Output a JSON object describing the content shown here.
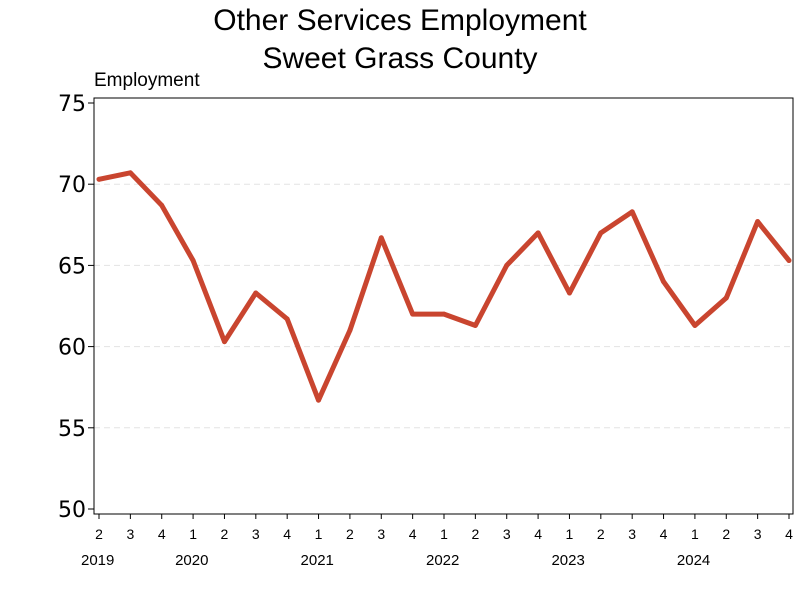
{
  "chart_data": {
    "type": "line",
    "title": [
      "Other Services Employment",
      "Sweet Grass County"
    ],
    "ylabel": "Employment",
    "xlabel": "",
    "ylim": [
      50,
      75
    ],
    "yticks": [
      "50",
      "55",
      "60",
      "65",
      "70",
      "75"
    ],
    "grid": "horizontal dashed",
    "legend": "none",
    "line_color": "#C9452F",
    "quarters": [
      "2",
      "3",
      "4",
      "1",
      "2",
      "3",
      "4",
      "1",
      "2",
      "3",
      "4",
      "1",
      "2",
      "3",
      "4",
      "1",
      "2",
      "3",
      "4",
      "1",
      "2",
      "3",
      "4"
    ],
    "years": [
      {
        "label": "2019",
        "index": 0
      },
      {
        "label": "2020",
        "index": 3
      },
      {
        "label": "2021",
        "index": 7
      },
      {
        "label": "2022",
        "index": 11
      },
      {
        "label": "2023",
        "index": 15
      },
      {
        "label": "2024",
        "index": 19
      }
    ],
    "series": [
      {
        "values": [
          70.3,
          70.7,
          68.7,
          65.3,
          60.3,
          63.3,
          61.7,
          56.7,
          61.0,
          66.7,
          62.0,
          62.0,
          61.3,
          65.0,
          67.0,
          63.3,
          67.0,
          68.3,
          64.0,
          61.3,
          63.0,
          67.7,
          65.3
        ]
      }
    ]
  }
}
